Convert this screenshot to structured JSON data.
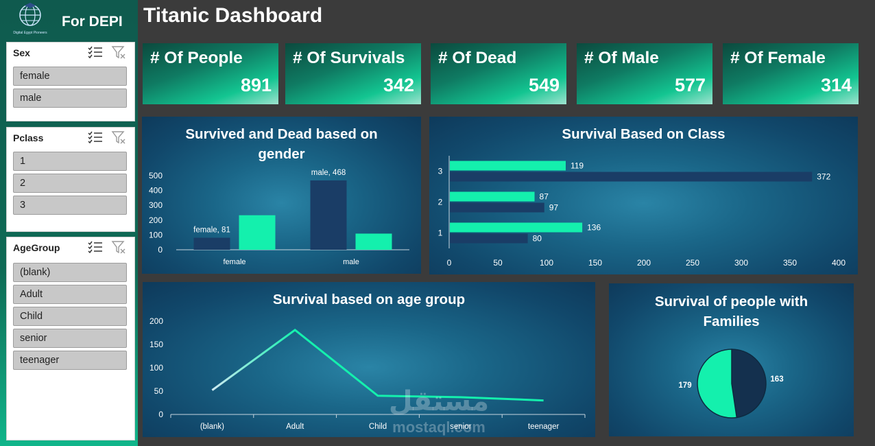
{
  "sidebar": {
    "brand_title": "For DEPI",
    "logo_text": "Digital Egypt Pioneers",
    "slicers": [
      {
        "title": "Sex",
        "items": [
          "female",
          "male"
        ]
      },
      {
        "title": "Pclass",
        "items": [
          "1",
          "2",
          "3"
        ]
      },
      {
        "title": "AgeGroup",
        "items": [
          "(blank)",
          "Adult",
          "Child",
          "senior",
          "teenager"
        ]
      }
    ]
  },
  "header": {
    "title": "Titanic Dashboard"
  },
  "kpis": [
    {
      "label": "# Of People",
      "value": "891"
    },
    {
      "label": "# Of Survivals",
      "value": "342"
    },
    {
      "label": "# Of Dead",
      "value": "549"
    },
    {
      "label": "# Of Male",
      "value": "577"
    },
    {
      "label": "# Of Female",
      "value": "314"
    }
  ],
  "colors": {
    "dark_bar": "#1a3d66",
    "mint": "#14f0ad",
    "panel": "#1a6688"
  },
  "watermark": {
    "arabic": "مستقل",
    "latin": "mostaql.com"
  },
  "chart_data": [
    {
      "type": "bar",
      "title": "Survived and Dead based on gender",
      "categories": [
        "female",
        "male"
      ],
      "series": [
        {
          "values": [
            81,
            468
          ],
          "color": "#1a3d66"
        },
        {
          "values": [
            233,
            109
          ],
          "color": "#14f0ad"
        }
      ],
      "data_labels": [
        "female, 81",
        "male, 468"
      ],
      "ylim": [
        0,
        500
      ],
      "yticks": [
        0,
        100,
        200,
        300,
        400,
        500
      ]
    },
    {
      "type": "bar",
      "orientation": "horizontal",
      "title": "Survival Based on Class",
      "categories": [
        "1",
        "2",
        "3"
      ],
      "series": [
        {
          "values": [
            136,
            87,
            119
          ],
          "color": "#14f0ad"
        },
        {
          "values": [
            80,
            97,
            372
          ],
          "color": "#1a3d66"
        }
      ],
      "xlim": [
        0,
        400
      ],
      "xticks": [
        0,
        50,
        100,
        150,
        200,
        250,
        300,
        350,
        400
      ]
    },
    {
      "type": "line",
      "title": "Survival based on age group",
      "categories": [
        "(blank)",
        "Adult",
        "Child",
        "senior",
        "teenager"
      ],
      "values": [
        52,
        181,
        40,
        37,
        30
      ],
      "ylim": [
        0,
        200
      ],
      "yticks": [
        0,
        50,
        100,
        150,
        200
      ]
    },
    {
      "type": "pie",
      "title": "Survival of people with Families",
      "values": [
        179,
        163
      ],
      "colors": [
        "#14f0ad",
        "#14304e"
      ]
    }
  ]
}
